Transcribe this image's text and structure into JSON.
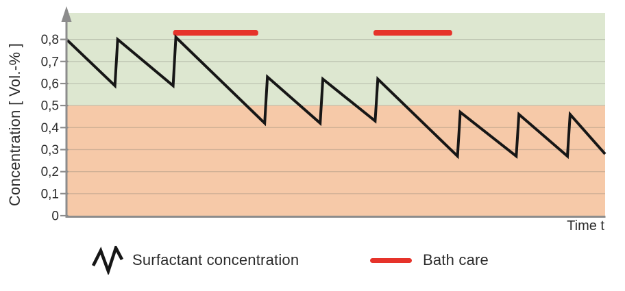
{
  "figure": {
    "x_axis_title": "Time t",
    "y_axis_title": "Concentration [ Vol.-% ]"
  },
  "legend": {
    "surfactant_label": "Surfactant concentration",
    "bath_care_label": "Bath care"
  },
  "chart_data": {
    "type": "line",
    "title": "",
    "xlabel": "Time t",
    "ylabel": "Concentration [ Vol.-% ]",
    "xlim": [
      0,
      10
    ],
    "ylim": [
      0,
      0.92
    ],
    "grid": true,
    "legend_position": "bottom",
    "y_ticks": [
      {
        "v": 0,
        "label": "0"
      },
      {
        "v": 0.1,
        "label": "0,1"
      },
      {
        "v": 0.2,
        "label": "0,2"
      },
      {
        "v": 0.3,
        "label": "0,3"
      },
      {
        "v": 0.4,
        "label": "0,4"
      },
      {
        "v": 0.5,
        "label": "0,5"
      },
      {
        "v": 0.6,
        "label": "0,6"
      },
      {
        "v": 0.7,
        "label": "0,7"
      },
      {
        "v": 0.8,
        "label": "0,8"
      }
    ],
    "threshold": {
      "value": 0.5,
      "above_color": "#dde7d0",
      "below_color": "#f6c9a8"
    },
    "series": [
      {
        "name": "Surfactant concentration",
        "color": "#161616",
        "points": [
          [
            0.0,
            0.8
          ],
          [
            0.9,
            0.59
          ],
          [
            0.95,
            0.8
          ],
          [
            1.98,
            0.59
          ],
          [
            2.03,
            0.81
          ],
          [
            3.68,
            0.42
          ],
          [
            3.73,
            0.63
          ],
          [
            4.71,
            0.42
          ],
          [
            4.76,
            0.62
          ],
          [
            5.73,
            0.43
          ],
          [
            5.78,
            0.62
          ],
          [
            7.26,
            0.27
          ],
          [
            7.31,
            0.47
          ],
          [
            8.35,
            0.27
          ],
          [
            8.4,
            0.46
          ],
          [
            9.3,
            0.27
          ],
          [
            9.35,
            0.46
          ],
          [
            10.0,
            0.28
          ]
        ]
      }
    ],
    "bath_care_bars": [
      {
        "name": "Bath care",
        "t_start": 1.98,
        "t_end": 3.56,
        "value": 0.83
      },
      {
        "name": "Bath care",
        "t_start": 5.7,
        "t_end": 7.16,
        "value": 0.83
      }
    ],
    "colors": {
      "bath_care": "#e6332a",
      "axis": "#8c8c8c",
      "grid": "rgba(110,112,100,0.28)",
      "text": "#2b2b2b"
    },
    "legend": [
      {
        "label": "Surfactant concentration",
        "marker": "zigzag-line"
      },
      {
        "label": "Bath care",
        "marker": "red-line"
      }
    ]
  }
}
